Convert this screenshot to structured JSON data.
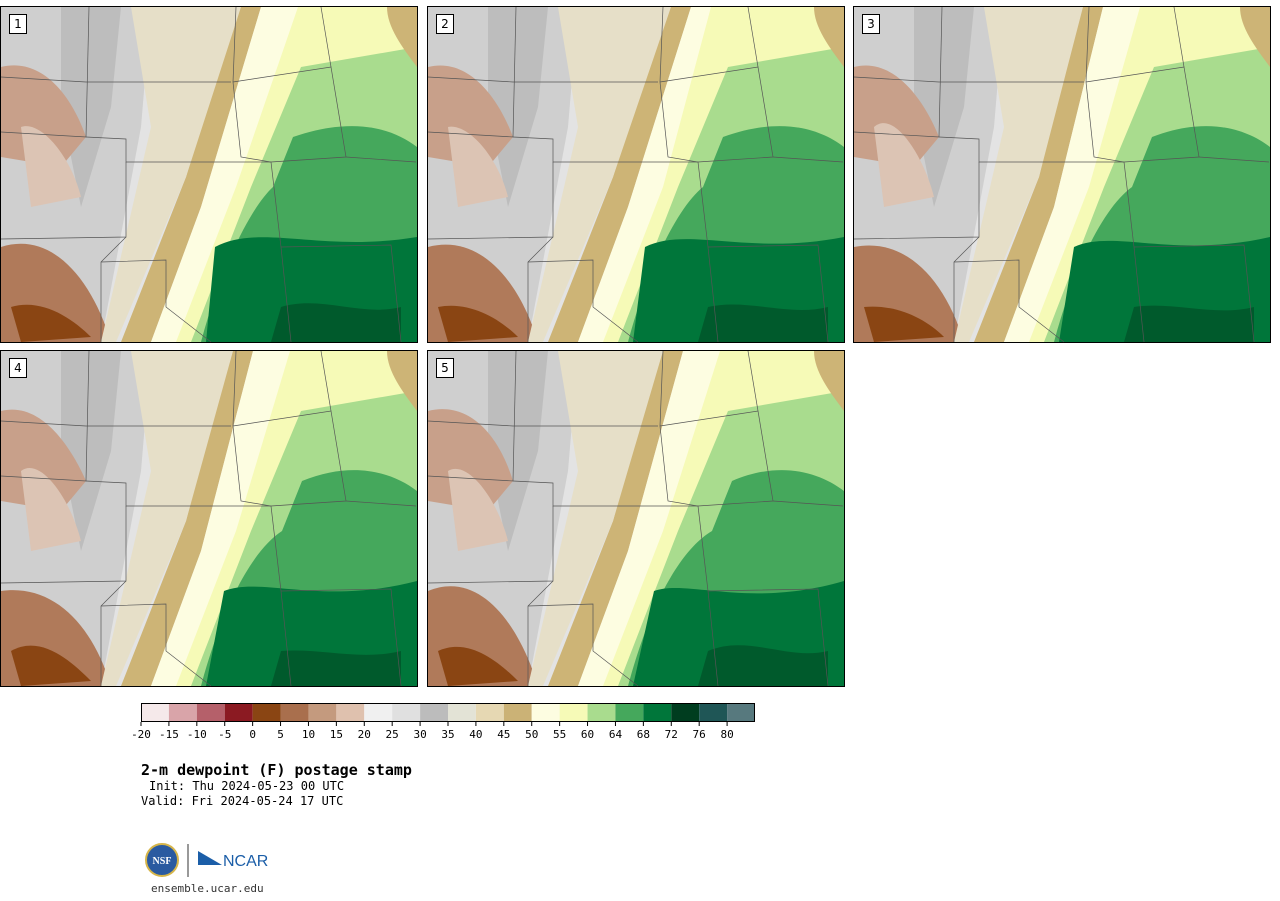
{
  "panels": [
    {
      "label": "1"
    },
    {
      "label": "2"
    },
    {
      "label": "3"
    },
    {
      "label": "4"
    },
    {
      "label": "5"
    }
  ],
  "colorbar": {
    "ticks": [
      "-20",
      "-15",
      "-10",
      "-5",
      "0",
      "5",
      "10",
      "15",
      "20",
      "25",
      "30",
      "35",
      "40",
      "45",
      "50",
      "55",
      "60",
      "64",
      "68",
      "72",
      "76",
      "80"
    ],
    "colors": [
      "#f5e9ea",
      "#d9a4a9",
      "#b5606a",
      "#8b1a22",
      "#8a4513",
      "#a96f4d",
      "#c49a7e",
      "#dfc1ae",
      "#f0f0f0",
      "#e0e0e0",
      "#bcbcbc",
      "#e3e3d6",
      "#e6d8b3",
      "#cbb276",
      "#fdfde1",
      "#f6fab7",
      "#a9dc8e",
      "#45a85c",
      "#00763a",
      "#003d1f",
      "#1f5656",
      "#57797e"
    ]
  },
  "title": "2-m dewpoint (F) postage stamp",
  "init": "Init: Thu 2024-05-23 00 UTC",
  "valid": "Valid: Fri 2024-05-24 17 UTC",
  "logos": {
    "nsf": "NSF",
    "ncar": "NCAR"
  },
  "site": "ensemble.ucar.edu"
}
